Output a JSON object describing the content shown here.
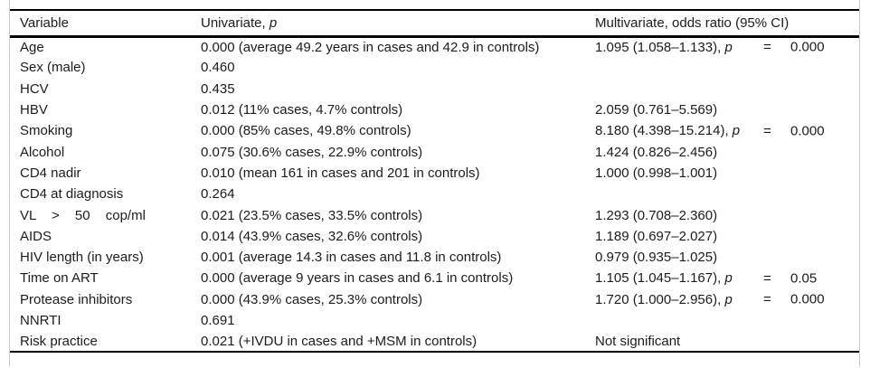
{
  "columns": {
    "variable": "Variable",
    "univariate_prefix": "Univariate, ",
    "p_symbol": "p",
    "multivariate": "Multivariate, odds ratio (95% CI)"
  },
  "equals_sign": "=",
  "rows": [
    {
      "variable": "Age",
      "univariate": "0.000 (average 49.2 years in cases and 42.9 in controls)",
      "multivariate": "1.095 (1.058–1.133),",
      "p": "0.000"
    },
    {
      "variable": "Sex (male)",
      "univariate": "0.460",
      "multivariate": "",
      "p": null
    },
    {
      "variable": "HCV",
      "univariate": "0.435",
      "multivariate": "",
      "p": null
    },
    {
      "variable": "HBV",
      "univariate": "0.012 (11% cases, 4.7% controls)",
      "multivariate": "2.059 (0.761–5.569)",
      "p": null
    },
    {
      "variable": "Smoking",
      "univariate": "0.000 (85% cases, 49.8% controls)",
      "multivariate": "8.180 (4.398–15.214),",
      "p": "0.000"
    },
    {
      "variable": "Alcohol",
      "univariate": "0.075 (30.6% cases, 22.9% controls)",
      "multivariate": "1.424 (0.826–2.456)",
      "p": null
    },
    {
      "variable": "CD4 nadir",
      "univariate": "0.010 (mean 161 in cases and 201 in controls)",
      "multivariate": "1.000 (0.998–1.001)",
      "p": null
    },
    {
      "variable": "CD4 at diagnosis",
      "univariate": "0.264",
      "multivariate": "",
      "p": null
    },
    {
      "variable": "VL > 50 cop/ml",
      "wide_spacing": true,
      "univariate": "0.021 (23.5% cases, 33.5% controls)",
      "multivariate": "1.293 (0.708–2.360)",
      "p": null
    },
    {
      "variable": "AIDS",
      "univariate": "0.014 (43.9% cases, 32.6% controls)",
      "multivariate": "1.189 (0.697–2.027)",
      "p": null
    },
    {
      "variable": "HIV length (in years)",
      "univariate": "0.001 (average 14.3 in cases and 11.8 in controls)",
      "multivariate": "0.979 (0.935–1.025)",
      "p": null
    },
    {
      "variable": "Time on ART",
      "univariate": "0.000 (average 9 years in cases and 6.1 in controls)",
      "multivariate": "1.105 (1.045–1.167),",
      "p": "0.05"
    },
    {
      "variable": "Protease inhibitors",
      "univariate": "0.000 (43.9% cases, 25.3% controls)",
      "multivariate": "1.720 (1.000–2.956),",
      "p": "0.000"
    },
    {
      "variable": "NNRTI",
      "univariate": "0.691",
      "multivariate": "",
      "p": null
    },
    {
      "variable": "Risk practice",
      "univariate": "0.021 (+IVDU in cases and +MSM in controls)",
      "multivariate": "Not significant",
      "p": null
    }
  ],
  "colors": {
    "rule": "#000000",
    "frame_border": "#cccccc",
    "text": "#1c1c1c",
    "background": "#ffffff"
  }
}
